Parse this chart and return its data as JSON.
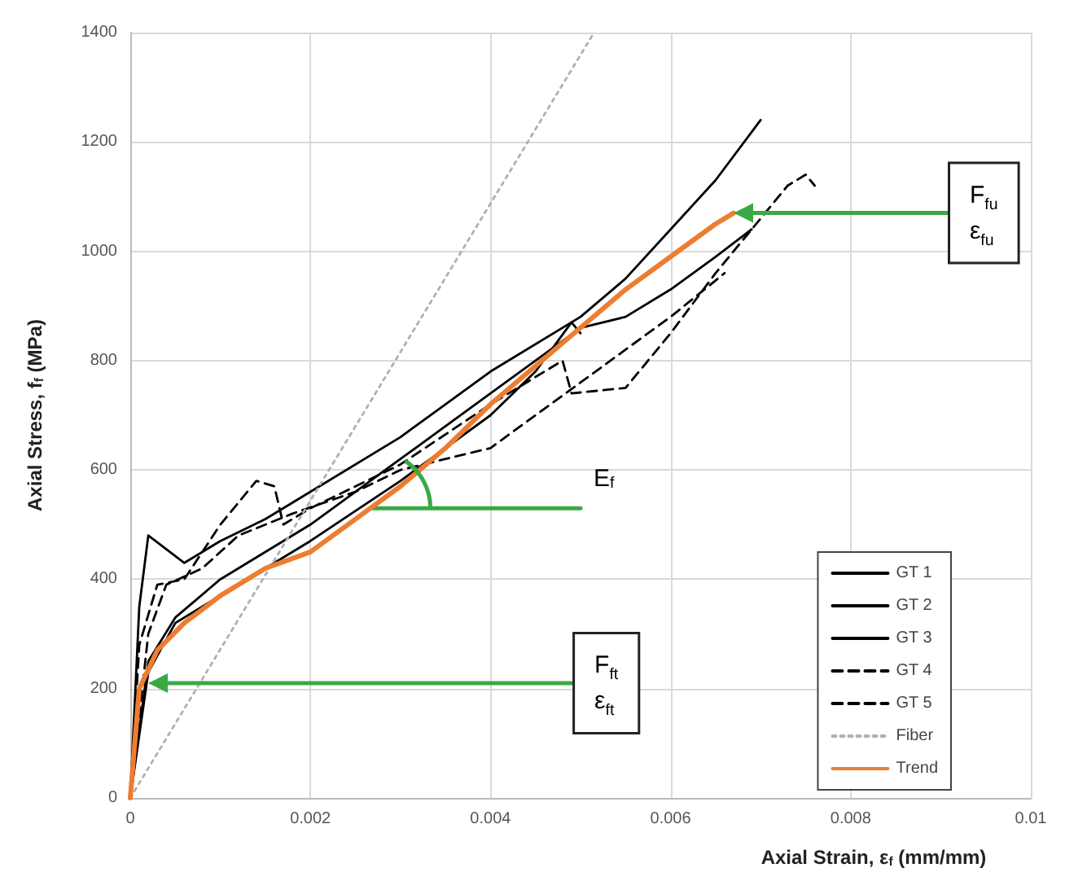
{
  "chart_data": {
    "type": "line",
    "xlabel": "Axial Strain, ε$_{f}$ (mm/mm)",
    "ylabel": "Axial Stress, f$_{f}$ (MPa)",
    "xlim": [
      0,
      0.01
    ],
    "xticks": [
      0,
      0.002,
      0.004,
      0.006,
      0.008,
      0.01
    ],
    "ylim": [
      0,
      1400
    ],
    "yticks": [
      0,
      200,
      400,
      600,
      800,
      1000,
      1200,
      1400
    ],
    "grid": true,
    "legend": "bottom right",
    "marker": "none",
    "series": [
      {
        "name": "GT 1",
        "color": "#000000",
        "line_style": "solid",
        "x": [
          0,
          0.0001,
          0.0002,
          0.0006,
          0.001,
          0.0015,
          0.002,
          0.003,
          0.004,
          0.005,
          0.0055,
          0.006,
          0.0065,
          0.007
        ],
        "values": [
          0,
          350,
          480,
          430,
          470,
          510,
          560,
          660,
          780,
          880,
          950,
          1040,
          1130,
          1240
        ]
      },
      {
        "name": "GT 2",
        "color": "#000000",
        "line_style": "solid",
        "x": [
          0,
          0.0002,
          0.0005,
          0.001,
          0.002,
          0.003,
          0.004,
          0.0045,
          0.005,
          0.0055,
          0.006,
          0.0065,
          0.0069
        ],
        "values": [
          0,
          250,
          330,
          400,
          500,
          620,
          740,
          800,
          860,
          880,
          930,
          990,
          1040
        ]
      },
      {
        "name": "GT 3",
        "color": "#000000",
        "line_style": "solid",
        "x": [
          0,
          0.0002,
          0.0005,
          0.001,
          0.002,
          0.003,
          0.004,
          0.0045,
          0.0049,
          0.005
        ],
        "values": [
          0,
          230,
          320,
          370,
          470,
          580,
          700,
          780,
          870,
          850
        ]
      },
      {
        "name": "GT 4",
        "color": "#000000",
        "line_style": "dashed",
        "x": [
          0,
          0.0002,
          0.0004,
          0.0008,
          0.0012,
          0.0018,
          0.0025,
          0.003,
          0.0035,
          0.004,
          0.0045,
          0.005,
          0.0055,
          0.006,
          0.0066
        ],
        "values": [
          0,
          300,
          390,
          420,
          480,
          520,
          560,
          600,
          620,
          640,
          700,
          760,
          820,
          880,
          960
        ]
      },
      {
        "name": "GT 5",
        "color": "#000000",
        "line_style": "dashed",
        "x": [
          0,
          0.0001,
          0.0003,
          0.0006,
          0.001,
          0.0014,
          0.0016,
          0.0017,
          0.002,
          0.003,
          0.004,
          0.0048,
          0.0049,
          0.0055,
          0.006,
          0.0065,
          0.007,
          0.0073,
          0.0075,
          0.0076
        ],
        "values": [
          0,
          280,
          390,
          400,
          500,
          580,
          570,
          500,
          530,
          610,
          720,
          800,
          740,
          750,
          850,
          960,
          1060,
          1120,
          1140,
          1120
        ]
      },
      {
        "name": "Fiber",
        "color": "#b0b0b0",
        "line_style": "dotted",
        "x": [
          0,
          0.00515
        ],
        "values": [
          0,
          1400
        ]
      },
      {
        "color": "#3aa845",
        "line_style": "solid",
        "x": [
          0.0027,
          0.005
        ],
        "values": [
          530,
          530
        ]
      },
      {
        "name": "Trend",
        "color": "#ed7d31",
        "line_style": "solid",
        "x": [
          0,
          0.0001,
          0.0003,
          0.0006,
          0.001,
          0.0015,
          0.002,
          0.0025,
          0.003,
          0.0035,
          0.004,
          0.0045,
          0.005,
          0.0055,
          0.006,
          0.0065,
          0.0067
        ],
        "values": [
          0,
          200,
          270,
          320,
          370,
          420,
          450,
          510,
          570,
          640,
          720,
          790,
          860,
          930,
          990,
          1050,
          1070
        ]
      }
    ],
    "annotations": [
      {
        "text": "F$_{fu}$\nε$_{fu}$",
        "x": 0.0067,
        "y": 1070
      },
      "E$_{f}$",
      {
        "text": "F$_{ft}$\nε$_{ft}$",
        "x": 0.0002,
        "y": 210
      }
    ]
  }
}
